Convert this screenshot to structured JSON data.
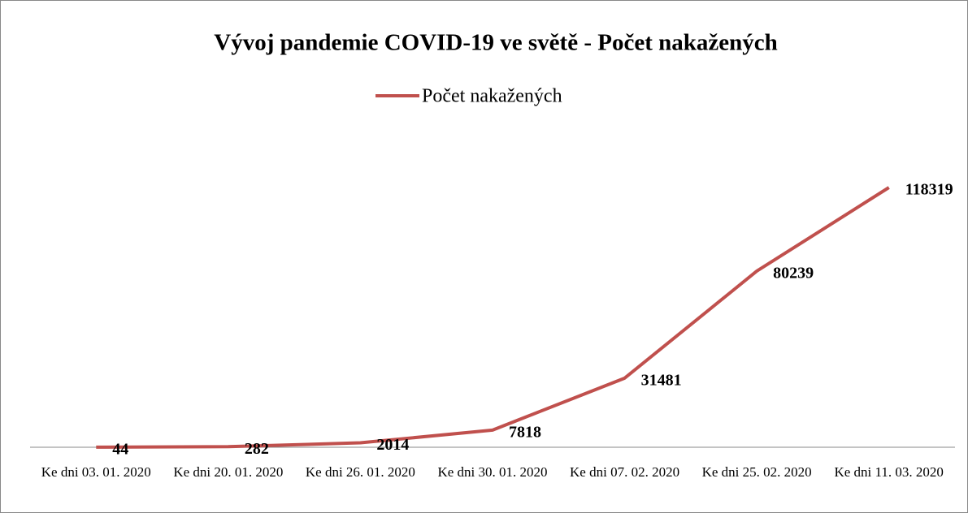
{
  "chart_data": {
    "type": "line",
    "title": "Vývoj pandemie COVID-19 ve světě - Počet nakažených",
    "categories": [
      "Ke dni 03. 01. 2020",
      "Ke dni 20. 01. 2020",
      "Ke dni 26. 01. 2020",
      "Ke dni 30. 01. 2020",
      "Ke dni 07. 02. 2020",
      "Ke dni 25. 02. 2020",
      "Ke dni 11. 03. 2020"
    ],
    "series": [
      {
        "name": "Počet nakažených",
        "color": "#c0504d",
        "values": [
          44,
          282,
          2014,
          7818,
          31481,
          80239,
          118319
        ]
      }
    ],
    "legend": "top"
  }
}
